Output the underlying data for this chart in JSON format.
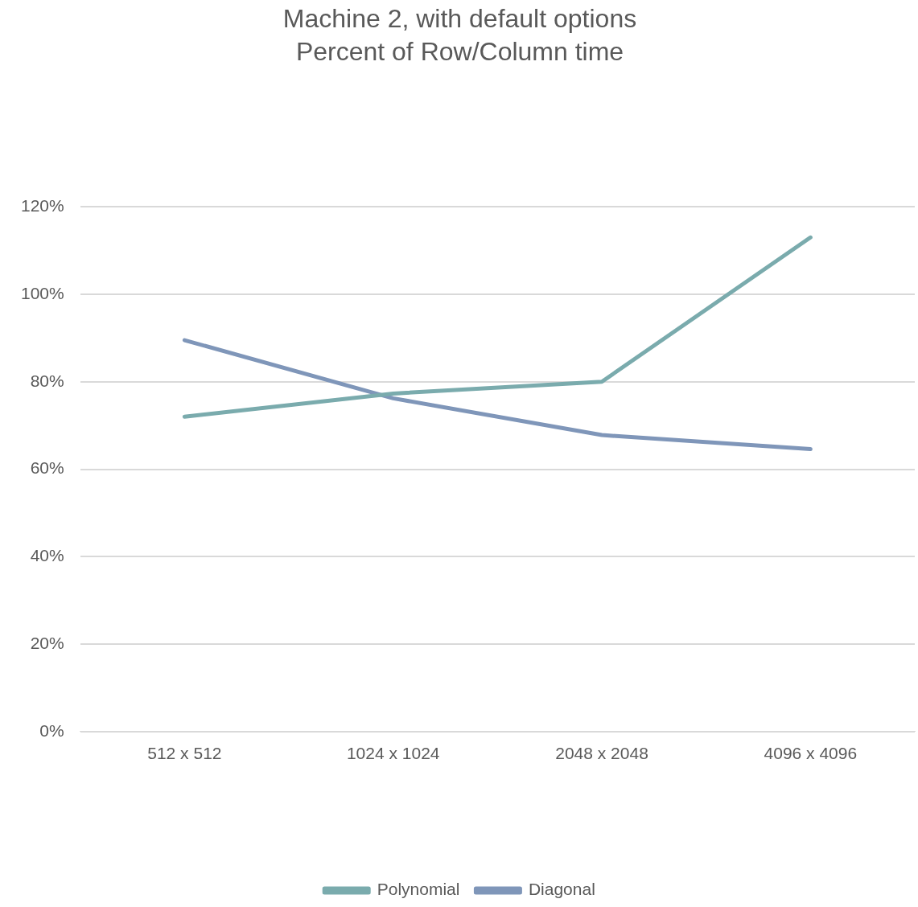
{
  "chart_data": {
    "type": "line",
    "title": "Machine 2, with default options\nPercent of Row/Column time",
    "categories": [
      "512 x 512",
      "1024 x 1024",
      "2048 x 2048",
      "4096 x 4096"
    ],
    "series": [
      {
        "name": "Polynomial",
        "color": "#7aabad",
        "values": [
          72,
          77.3,
          80,
          113
        ]
      },
      {
        "name": "Diagonal",
        "color": "#7f96b9",
        "values": [
          89.5,
          76.2,
          67.8,
          64.6
        ]
      }
    ],
    "ylim": [
      0,
      120
    ],
    "yticks": [
      {
        "value": 0,
        "label": "0%"
      },
      {
        "value": 20,
        "label": "20%"
      },
      {
        "value": 40,
        "label": "40%"
      },
      {
        "value": 60,
        "label": "60%"
      },
      {
        "value": 80,
        "label": "80%"
      },
      {
        "value": 100,
        "label": "100%"
      },
      {
        "value": 120,
        "label": "120%"
      }
    ],
    "grid": "y",
    "legend": "bottom",
    "marker": "none",
    "line_style": "solid"
  }
}
